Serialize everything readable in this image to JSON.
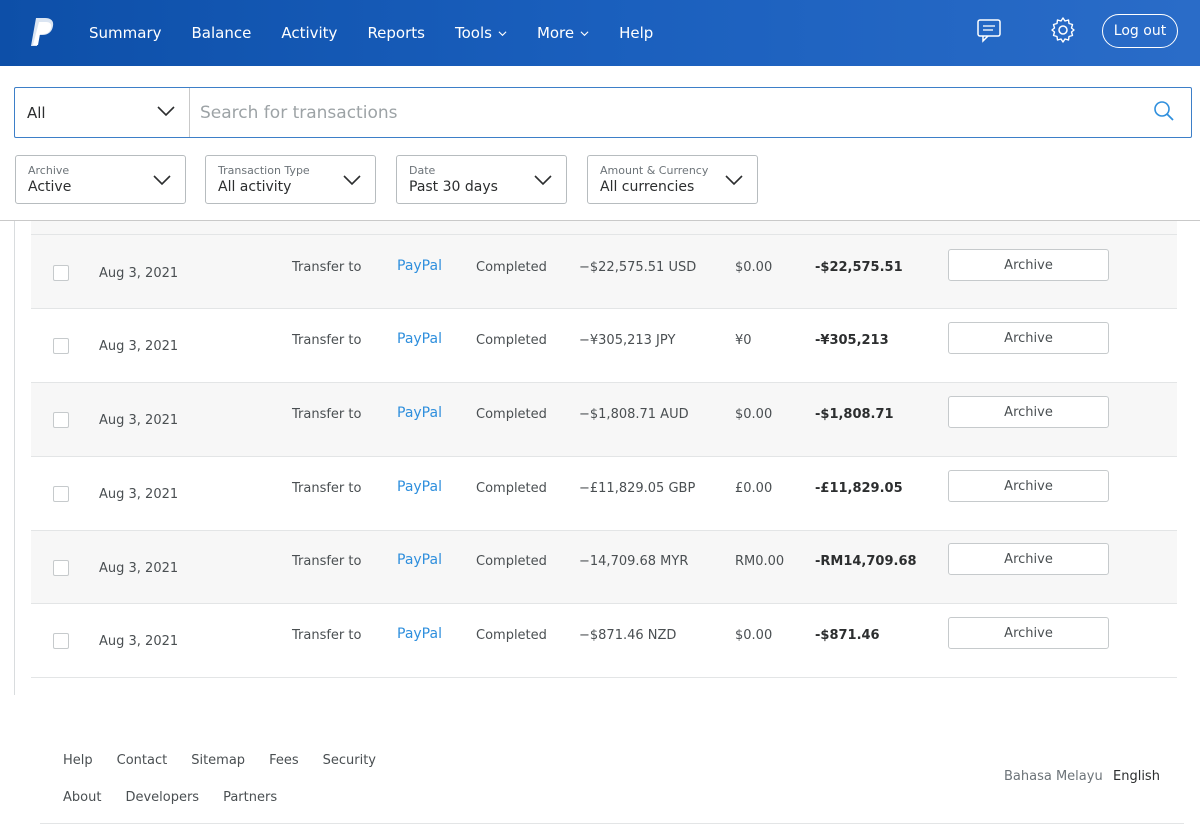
{
  "header": {
    "nav": [
      {
        "label": "Summary",
        "has_menu": false
      },
      {
        "label": "Balance",
        "has_menu": false
      },
      {
        "label": "Activity",
        "has_menu": false
      },
      {
        "label": "Reports",
        "has_menu": false
      },
      {
        "label": "Tools",
        "has_menu": true
      },
      {
        "label": "More",
        "has_menu": true
      },
      {
        "label": "Help",
        "has_menu": false
      }
    ],
    "logout_label": "Log out",
    "icons": [
      "paypal-logo",
      "message-center-icon",
      "settings-gear-icon"
    ],
    "colors": {
      "bar_start": "#0d4fa8",
      "bar_end": "#2a6cc8"
    }
  },
  "search": {
    "filter_value": "All",
    "placeholder": "Search for transactions"
  },
  "filters": [
    {
      "label": "Archive",
      "value": "Active"
    },
    {
      "label": "Transaction Type",
      "value": "All activity"
    },
    {
      "label": "Date",
      "value": "Past 30 days"
    },
    {
      "label": "Amount & Currency",
      "value": "All currencies"
    }
  ],
  "transactions": [
    {
      "date": "Aug 3, 2021",
      "type": "Transfer to",
      "name": "PayPal",
      "status": "Completed",
      "gross": "−$22,575.51 USD",
      "fee": "$0.00",
      "net": "-$22,575.51",
      "action": "Archive"
    },
    {
      "date": "Aug 3, 2021",
      "type": "Transfer to",
      "name": "PayPal",
      "status": "Completed",
      "gross": "−¥305,213 JPY",
      "fee": "¥0",
      "net": "-¥305,213",
      "action": "Archive"
    },
    {
      "date": "Aug 3, 2021",
      "type": "Transfer to",
      "name": "PayPal",
      "status": "Completed",
      "gross": "−$1,808.71 AUD",
      "fee": "$0.00",
      "net": "-$1,808.71",
      "action": "Archive"
    },
    {
      "date": "Aug 3, 2021",
      "type": "Transfer to",
      "name": "PayPal",
      "status": "Completed",
      "gross": "−£11,829.05 GBP",
      "fee": "£0.00",
      "net": "-£11,829.05",
      "action": "Archive"
    },
    {
      "date": "Aug 3, 2021",
      "type": "Transfer to",
      "name": "PayPal",
      "status": "Completed",
      "gross": "−14,709.68 MYR",
      "fee": "RM0.00",
      "net": "-RM14,709.68",
      "action": "Archive"
    },
    {
      "date": "Aug 3, 2021",
      "type": "Transfer to",
      "name": "PayPal",
      "status": "Completed",
      "gross": "−$871.46 NZD",
      "fee": "$0.00",
      "net": "-$871.46",
      "action": "Archive"
    }
  ],
  "footer": {
    "links_row1": [
      "Help",
      "Contact",
      "Sitemap",
      "Fees",
      "Security"
    ],
    "links_row2": [
      "About",
      "Developers",
      "Partners"
    ],
    "languages": [
      {
        "label": "Bahasa Melayu",
        "selected": false
      },
      {
        "label": "English",
        "selected": true
      }
    ]
  }
}
